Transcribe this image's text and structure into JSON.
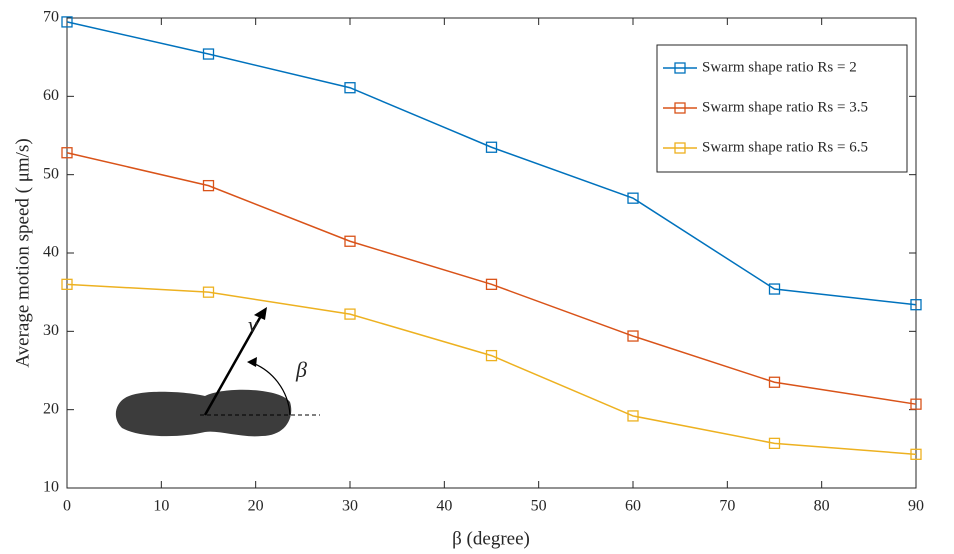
{
  "chart_data": {
    "type": "line",
    "x_label": "β (degree)",
    "y_label": "Average motion speed ( μm/s)",
    "x": [
      0,
      15,
      30,
      45,
      60,
      75,
      90
    ],
    "series": [
      {
        "name": "Swarm shape ratio Rs = 2",
        "color": "#0072bd",
        "values": [
          69.5,
          65.4,
          61.1,
          53.5,
          47,
          35.4,
          33.4
        ]
      },
      {
        "name": "Swarm shape ratio Rs = 3.5",
        "color": "#d95319",
        "values": [
          52.8,
          48.6,
          41.5,
          36,
          29.4,
          23.5,
          20.7
        ]
      },
      {
        "name": "Swarm shape ratio Rs = 6.5",
        "color": "#edb120",
        "values": [
          36,
          35,
          32.2,
          26.9,
          19.2,
          15.7,
          14.3
        ]
      }
    ],
    "xlim": [
      0,
      90
    ],
    "xticks": [
      0,
      10,
      20,
      30,
      40,
      50,
      60,
      70,
      80,
      90
    ],
    "ylim": [
      10,
      70
    ],
    "yticks": [
      10,
      20,
      30,
      40,
      50,
      60,
      70
    ],
    "legend": "top-right",
    "annotations": [
      "v",
      "β"
    ]
  }
}
